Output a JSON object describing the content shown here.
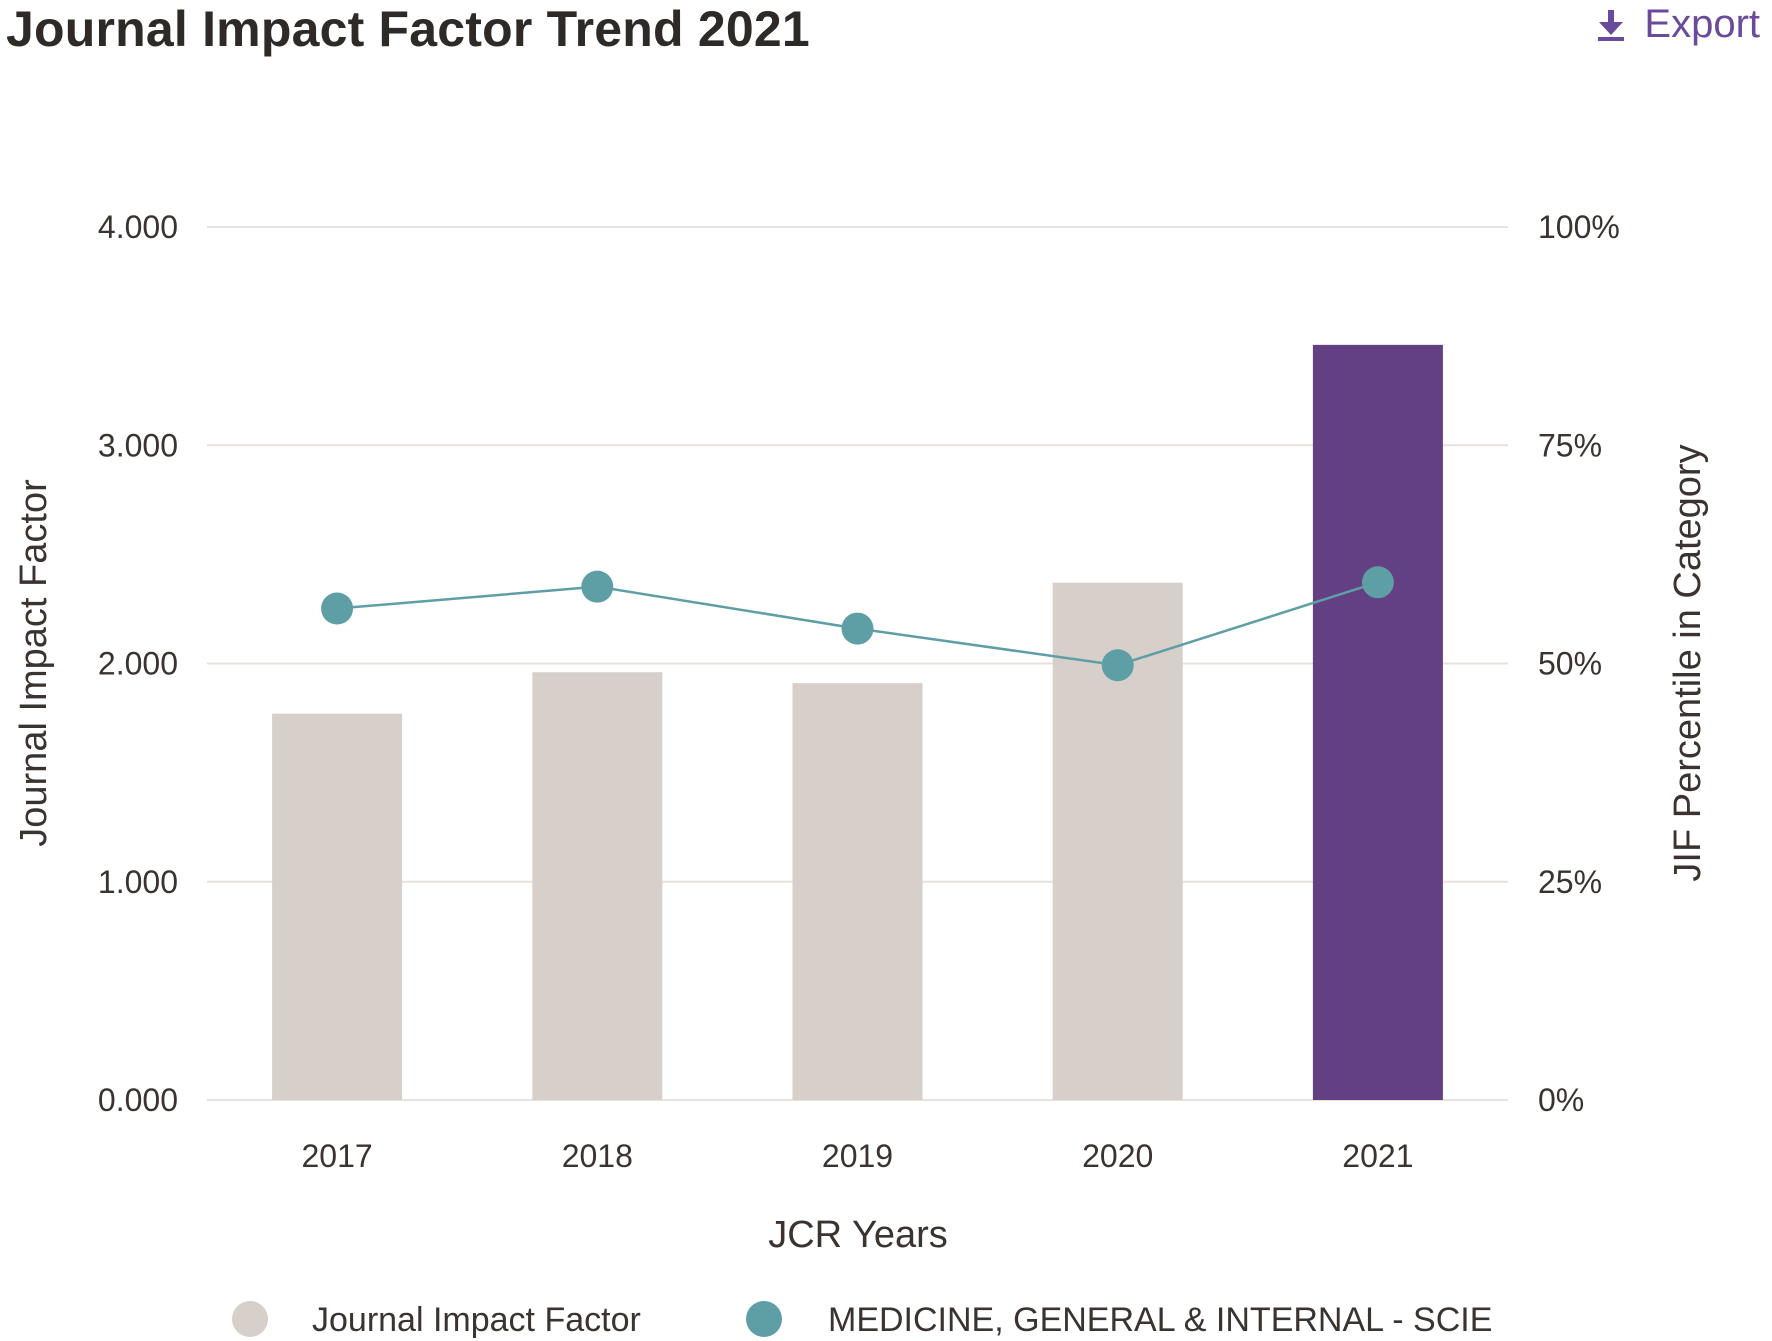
{
  "header": {
    "title": "Journal Impact Factor Trend 2021",
    "export_label": "Export",
    "export_icon": "download-icon"
  },
  "chart_data": {
    "type": "bar",
    "title": "Journal Impact Factor Trend 2021",
    "categories": [
      "2017",
      "2018",
      "2019",
      "2020",
      "2021"
    ],
    "xlabel": "JCR Years",
    "ylabel": "Journal Impact Factor",
    "y2label": "JIF Percentile in Category",
    "ylim": [
      0,
      4
    ],
    "y2lim": [
      0,
      100
    ],
    "yticks": [
      "0.000",
      "1.000",
      "2.000",
      "3.000",
      "4.000"
    ],
    "y2ticks": [
      "0%",
      "25%",
      "50%",
      "75%",
      "100%"
    ],
    "grid": true,
    "legend_position": "bottom",
    "series": [
      {
        "name": "Journal Impact Factor",
        "type": "bar",
        "axis": "left",
        "values": [
          1.77,
          1.96,
          1.91,
          2.37,
          3.46
        ],
        "color": "#d6cfca",
        "highlight_color": "#633f84",
        "highlight_index": 4
      },
      {
        "name": "MEDICINE, GENERAL & INTERNAL - SCIE",
        "type": "line",
        "axis": "right",
        "values": [
          56.3,
          58.8,
          54.0,
          49.8,
          59.3
        ],
        "color": "#5e9ea5"
      }
    ]
  }
}
